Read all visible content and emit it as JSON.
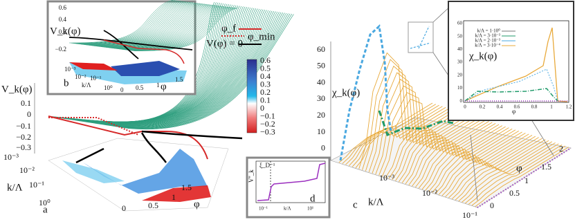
{
  "panel_a": {
    "label": "a",
    "z_axis_label": "V_k(φ)",
    "z_ticks": [
      "0.1",
      "0",
      "−0.1",
      "−0.2",
      "−0.3"
    ],
    "k_axis_label": "k/Λ",
    "k_ticks": [
      "10⁻³",
      "10⁻²",
      "10⁻¹",
      "10⁰"
    ],
    "phi_axis_label": "φ",
    "phi_ticks": [
      "0",
      "0.5",
      "1",
      "1.5"
    ]
  },
  "legend": {
    "phi_f": "φ_f",
    "phi_min": "φ_min",
    "v_zero": "V(φ) = 0"
  },
  "colorbar_ticks": [
    "0.6",
    "0.5",
    "0.4",
    "0.3",
    "0.2",
    "0.1",
    "0",
    "−0.1",
    "−0.2",
    "−0.3"
  ],
  "panel_b": {
    "label": "b",
    "z_axis_label": "V_k(φ)",
    "z_ticks": [
      "0.6",
      "0.4",
      "0.2",
      "−0.2"
    ],
    "k_axis_label": "k/Λ",
    "k_ticks": [
      "10⁻³",
      "10⁻²",
      "10⁻¹",
      "10⁰"
    ],
    "phi_axis_label": "φ",
    "phi_ticks": [
      "0",
      "0.5",
      "1",
      "1.5"
    ]
  },
  "panel_c": {
    "label": "c",
    "z_axis_label": "χ_k(φ)",
    "z_ticks": [
      "60",
      "50",
      "40",
      "30",
      "20",
      "10",
      "0"
    ],
    "k_axis_label": "k/Λ",
    "k_ticks": [
      "10⁻³",
      "10⁻²",
      "10⁻¹"
    ],
    "phi_axis_label": "φ",
    "phi_ticks": [
      "0",
      "0.5",
      "1",
      "1.5",
      "2"
    ]
  },
  "panel_c_inset": {
    "y_axis_label": "χ_k(φ)",
    "y_ticks": [
      "60",
      "50",
      "40",
      "30",
      "20",
      "10",
      "0"
    ],
    "x_axis_label": "φ",
    "x_ticks": [
      "0",
      "0.2",
      "0.4",
      "0.6",
      "0.8",
      "1",
      "1.2"
    ],
    "legend": [
      "k/Λ = 1·10⁰",
      "k/Λ = 3·10⁻³",
      "k/Λ = 2·10⁻³",
      "k/Λ = 3·10⁻⁴"
    ]
  },
  "panel_d": {
    "label": "d",
    "y_axis_label": "V''_k",
    "marker_label": "ξ_D⁻¹",
    "x_axis_label": "k/Λ",
    "x_ticks": [
      "10⁻¹",
      "10¹"
    ]
  }
}
